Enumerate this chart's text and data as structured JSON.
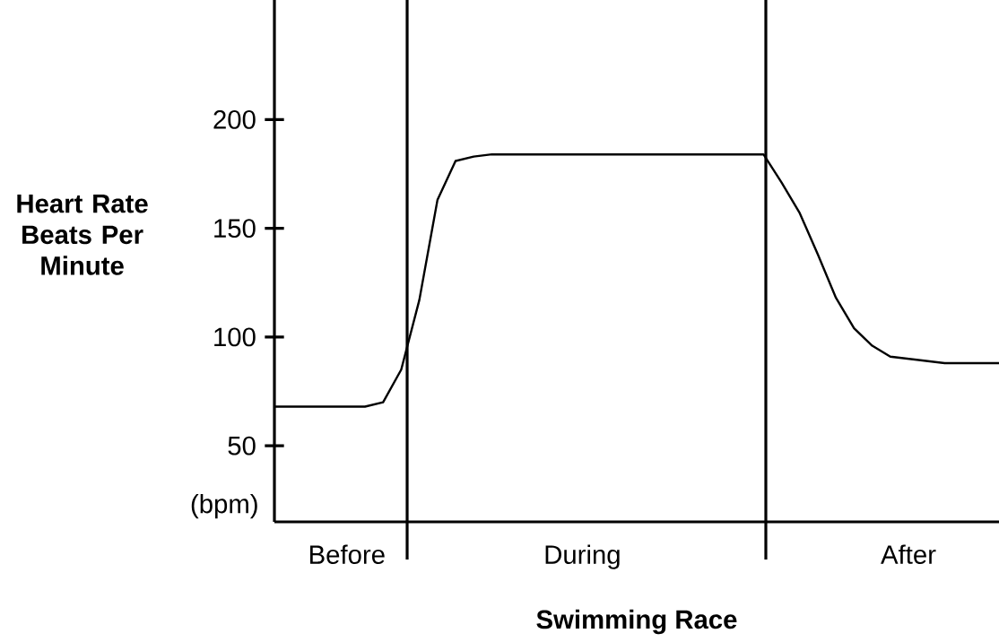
{
  "chart_data": {
    "type": "line",
    "xlabel": "Swimming Race",
    "ylabel": "Heart Rate Beats Per Minute",
    "annotations": [
      "(bpm)"
    ],
    "categories": [
      null,
      null,
      null,
      null,
      "Before",
      null,
      null,
      null,
      null,
      null,
      null,
      null,
      null,
      null,
      null,
      null,
      null,
      "During",
      null,
      null,
      null,
      null,
      null,
      null,
      null,
      null,
      null,
      null,
      null,
      null,
      null,
      null,
      null,
      null,
      null,
      "After",
      null,
      null,
      null,
      null,
      null
    ],
    "series": [
      {
        "color": "#000000",
        "values": [
          68,
          68,
          68,
          68,
          68,
          68,
          70,
          85,
          117,
          163,
          181,
          183,
          184,
          184,
          184,
          184,
          184,
          184,
          184,
          184,
          184,
          184,
          184,
          184,
          184,
          184,
          184,
          184,
          171,
          157,
          138,
          118,
          104,
          96,
          91,
          90,
          89,
          88,
          88,
          88,
          88
        ]
      }
    ],
    "ylim": [
      15,
      255
    ],
    "yticks": [
      50,
      100,
      150,
      200
    ],
    "marker": "none",
    "line_style": "solid"
  }
}
